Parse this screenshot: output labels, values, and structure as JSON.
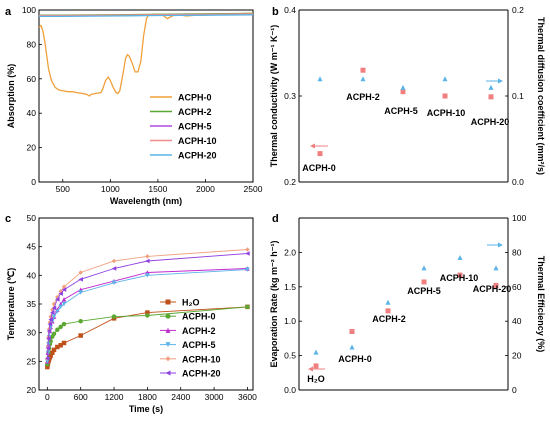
{
  "chart_data": [
    {
      "panel": "a",
      "type": "line",
      "xlabel": "Wavelength (nm)",
      "ylabel": "Absorption (%)",
      "xlim": [
        250,
        2500
      ],
      "ylim": [
        0,
        100
      ],
      "xticks": [
        500,
        1000,
        1500,
        2000,
        2500
      ],
      "yticks": [
        0,
        20,
        40,
        60,
        80,
        100
      ],
      "legend_position": "right",
      "series": [
        {
          "name": "ACPH-0",
          "color": "#f0a03a",
          "x": [
            250,
            270,
            290,
            310,
            330,
            350,
            380,
            420,
            460,
            500,
            550,
            600,
            650,
            700,
            750,
            780,
            800,
            850,
            900,
            920,
            950,
            980,
            1000,
            1030,
            1060,
            1080,
            1100,
            1130,
            1160,
            1180,
            1200,
            1230,
            1260,
            1290,
            1320,
            1350,
            1380,
            1400,
            1450,
            1500,
            1550,
            1600,
            1650,
            1700,
            1750,
            1800,
            1900,
            2000,
            2100,
            2200,
            2300,
            2400,
            2500
          ],
          "y": [
            90,
            91,
            88,
            82,
            74,
            66,
            59,
            55,
            53.5,
            53,
            52.5,
            52.5,
            52,
            51.5,
            51,
            50,
            51,
            51.5,
            52,
            54,
            59,
            61,
            59,
            55,
            52,
            51.5,
            53,
            62,
            72,
            74,
            73,
            69,
            64,
            64,
            70,
            85,
            95,
            97,
            97.5,
            97.5,
            97,
            95,
            96.5,
            97.5,
            97,
            96.5,
            97,
            97,
            97.5,
            97.5,
            97.5,
            98,
            98
          ]
        },
        {
          "name": "ACPH-2",
          "color": "#5aa832",
          "x": [
            250,
            500,
            1000,
            1500,
            2000,
            2500
          ],
          "y": [
            97,
            97,
            97.2,
            97.5,
            97.8,
            98
          ]
        },
        {
          "name": "ACPH-5",
          "color": "#b04ae0",
          "x": [
            250,
            500,
            1000,
            1500,
            2000,
            2500
          ],
          "y": [
            96.5,
            96.5,
            96.7,
            97,
            97.2,
            97.5
          ]
        },
        {
          "name": "ACPH-10",
          "color": "#f08c8c",
          "x": [
            250,
            500,
            1000,
            1500,
            2000,
            2500
          ],
          "y": [
            96.8,
            96.8,
            97,
            97.3,
            97.5,
            97.8
          ]
        },
        {
          "name": "ACPH-20",
          "color": "#5ab4e8",
          "x": [
            250,
            500,
            1000,
            1500,
            2000,
            2500
          ],
          "y": [
            96.3,
            96.3,
            96.5,
            96.8,
            97,
            97.2
          ]
        }
      ]
    },
    {
      "panel": "b",
      "type": "scatter",
      "ylabel": "Thermal conductivity (W m⁻¹ K⁻¹)",
      "ylabel2": "Thermal diffusion coefficient (mm²/s)",
      "ylim": [
        0.2,
        0.4
      ],
      "ylim2": [
        0.0,
        0.2
      ],
      "yticks": [
        0.2,
        0.3,
        0.4
      ],
      "yticks2": [
        0.0,
        0.1,
        0.2
      ],
      "categories": [
        "ACPH-0",
        "ACPH-2",
        "ACPH-5",
        "ACPH-10",
        "ACPH-20"
      ],
      "series": [
        {
          "axis": "left",
          "marker": "square",
          "color": "#f08080",
          "values": [
            0.233,
            0.33,
            0.305,
            0.3,
            0.299
          ]
        },
        {
          "axis": "right",
          "marker": "triangle",
          "color": "#5ab4e8",
          "values": [
            0.12,
            0.12,
            0.11,
            0.12,
            0.11
          ]
        }
      ]
    },
    {
      "panel": "c",
      "type": "line",
      "xlabel": "Time (s)",
      "ylabel": "Temperature (℃)",
      "xlim": [
        -150,
        3700
      ],
      "ylim": [
        20,
        50
      ],
      "xticks": [
        0,
        600,
        1200,
        1800,
        2400,
        3000,
        3600
      ],
      "yticks": [
        20,
        25,
        30,
        35,
        40,
        45,
        50
      ],
      "legend_position": "bottom-right",
      "series": [
        {
          "name": "H2O",
          "color": "#c0501a",
          "marker": "square",
          "x": [
            0,
            10,
            20,
            30,
            45,
            60,
            90,
            120,
            180,
            240,
            300,
            600,
            1200,
            1800,
            3600
          ],
          "y": [
            24,
            24.5,
            25,
            25.3,
            25.7,
            26,
            26.5,
            27,
            27.5,
            27.8,
            28.2,
            29.5,
            32.5,
            33.5,
            34.5
          ]
        },
        {
          "name": "ACPH-0",
          "color": "#5aa832",
          "marker": "circle",
          "x": [
            0,
            10,
            20,
            30,
            45,
            60,
            90,
            120,
            180,
            240,
            300,
            600,
            1200,
            1800,
            3600
          ],
          "y": [
            24.5,
            25.5,
            26.5,
            27.3,
            28,
            28.5,
            29.3,
            29.8,
            30.5,
            31,
            31.5,
            32,
            32.8,
            33,
            34.5
          ]
        },
        {
          "name": "ACPH-2",
          "color": "#c02ad0",
          "marker": "triangle-up",
          "x": [
            0,
            10,
            20,
            30,
            45,
            60,
            90,
            120,
            180,
            240,
            300,
            600,
            1200,
            1800,
            3600
          ],
          "y": [
            25,
            26.5,
            28,
            29.2,
            30.3,
            31,
            32,
            32.8,
            34,
            35,
            35.8,
            37.5,
            39,
            40.5,
            41.2
          ]
        },
        {
          "name": "ACPH-5",
          "color": "#5ab4e8",
          "marker": "triangle-down",
          "x": [
            0,
            10,
            20,
            30,
            45,
            60,
            90,
            120,
            180,
            240,
            300,
            600,
            1200,
            1800,
            3600
          ],
          "y": [
            25,
            26.5,
            28,
            29.2,
            30.3,
            31,
            32,
            32.8,
            33.7,
            34.5,
            35,
            37,
            38.7,
            40,
            41
          ]
        },
        {
          "name": "ACPH-10",
          "color": "#f0a080",
          "marker": "diamond",
          "x": [
            0,
            10,
            20,
            30,
            45,
            60,
            90,
            120,
            180,
            240,
            300,
            600,
            1200,
            1800,
            3600
          ],
          "y": [
            25.5,
            27.5,
            29.2,
            30.6,
            31.8,
            32.8,
            34,
            35,
            36.2,
            37.2,
            38,
            40.5,
            42.5,
            43.3,
            44.5
          ]
        },
        {
          "name": "ACPH-20",
          "color": "#9040e0",
          "marker": "triangle-left",
          "x": [
            0,
            10,
            20,
            30,
            45,
            60,
            90,
            120,
            180,
            240,
            300,
            600,
            1200,
            1800,
            3600
          ],
          "y": [
            25.5,
            27.3,
            29,
            30.3,
            31.5,
            32.3,
            33.5,
            34.3,
            35.8,
            36.8,
            37.5,
            39.3,
            41.2,
            42.5,
            43.8
          ]
        }
      ]
    },
    {
      "panel": "d",
      "type": "scatter",
      "ylabel": "Evaporation Rate (kg m⁻² h⁻¹)",
      "ylabel2": "Thermal Efficiency (%)",
      "ylim": [
        0,
        2.5
      ],
      "ylim2": [
        0,
        100
      ],
      "yticks": [
        0.0,
        0.5,
        1.0,
        1.5,
        2.0
      ],
      "yticks2": [
        0,
        20,
        40,
        60,
        80,
        100
      ],
      "categories": [
        "H2O",
        "ACPH-0",
        "ACPH-2",
        "ACPH-5",
        "ACPH-10",
        "ACPH-20"
      ],
      "series": [
        {
          "axis": "left",
          "marker": "square",
          "color": "#f08080",
          "values": [
            0.35,
            0.85,
            1.15,
            1.57,
            1.67,
            1.52
          ]
        },
        {
          "axis": "right",
          "marker": "triangle",
          "color": "#5ab4e8",
          "values": [
            22,
            25,
            51,
            71,
            77,
            71
          ]
        }
      ]
    }
  ],
  "panels": {
    "a": {
      "letter": "a"
    },
    "b": {
      "letter": "b"
    },
    "c": {
      "letter": "c"
    },
    "d": {
      "letter": "d"
    }
  },
  "annotations": {
    "b": [
      "ACPH-0",
      "ACPH-2",
      "ACPH-5",
      "ACPH-10",
      "ACPH-20"
    ],
    "d": [
      "H₂O",
      "ACPH-0",
      "ACPH-2",
      "ACPH-5",
      "ACPH-10",
      "ACPH-20"
    ]
  },
  "legend_c": [
    "H₂O",
    "ACPH-0",
    "ACPH-2",
    "ACPH-5",
    "ACPH-10",
    "ACPH-20"
  ]
}
